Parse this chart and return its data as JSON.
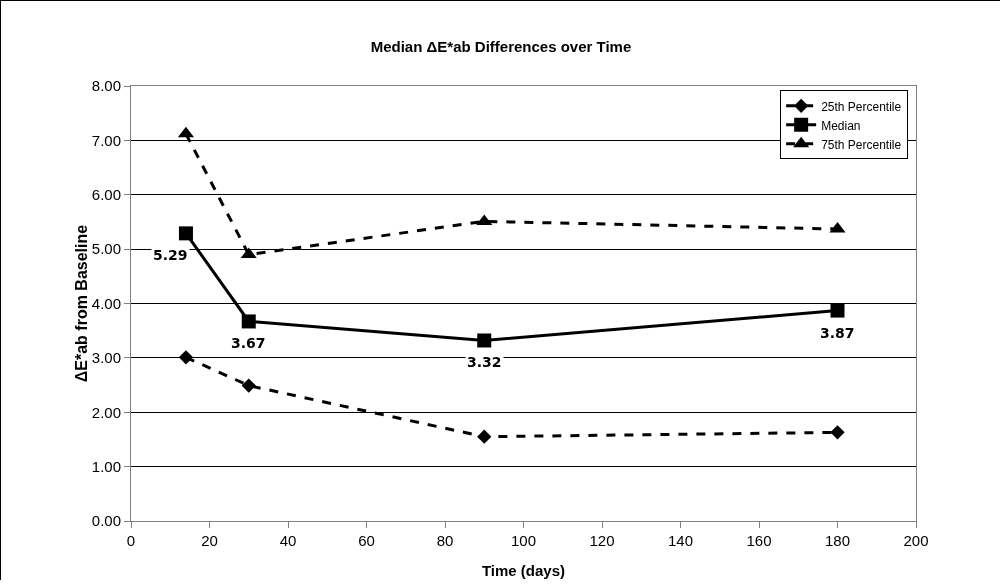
{
  "chart_data": {
    "type": "line",
    "title": "Median ΔE*ab Differences over Time",
    "xlabel": "Time (days)",
    "ylabel": "ΔE*ab from Baseline",
    "x": [
      14,
      30,
      90,
      180
    ],
    "series": [
      {
        "name": "25th Percentile",
        "color": "#000000",
        "values": [
          3.01,
          2.49,
          1.55,
          1.63
        ],
        "marker": "diamond",
        "line_style": "dashed"
      },
      {
        "name": "Median",
        "color": "#000000",
        "values": [
          5.29,
          3.67,
          3.32,
          3.87
        ],
        "marker": "square",
        "line_style": "solid",
        "value_labels": [
          "5.29",
          "3.67",
          "3.32",
          "3.87"
        ]
      },
      {
        "name": "75th Percentile",
        "color": "#000000",
        "values": [
          7.12,
          4.9,
          5.51,
          5.37
        ],
        "marker": "triangle",
        "line_style": "dashed"
      }
    ],
    "xlim": [
      0,
      200
    ],
    "xticks": [
      0,
      20,
      40,
      60,
      80,
      100,
      120,
      140,
      160,
      180,
      200
    ],
    "ylim": [
      0,
      8
    ],
    "yticks": [
      {
        "value": 0,
        "label": "0.00"
      },
      {
        "value": 1,
        "label": "1.00"
      },
      {
        "value": 2,
        "label": "2.00"
      },
      {
        "value": 3,
        "label": "3.00"
      },
      {
        "value": 4,
        "label": "4.00"
      },
      {
        "value": 5,
        "label": "5.00"
      },
      {
        "value": 6,
        "label": "6.00"
      },
      {
        "value": 7,
        "label": "7.00"
      },
      {
        "value": 8,
        "label": "8.00"
      }
    ],
    "grid": "y",
    "legend": "top right"
  }
}
